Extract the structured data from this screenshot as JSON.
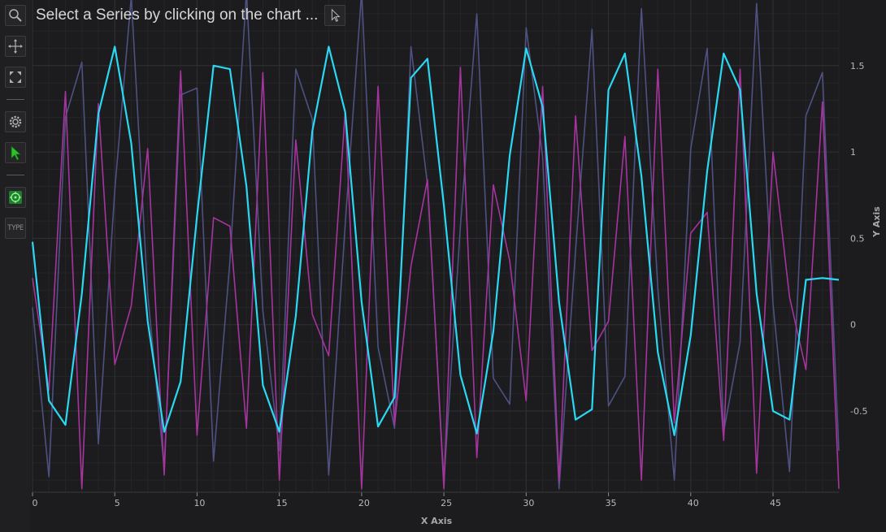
{
  "toolbar": {
    "items": [
      {
        "icon": "zoom-icon"
      },
      {
        "icon": "pan-icon"
      },
      {
        "icon": "zoom-extents-icon"
      },
      {
        "icon": "settings-icon"
      },
      {
        "icon": "series-select-cursor-icon"
      },
      {
        "icon": "crosshair-icon"
      },
      {
        "icon": "type-icon",
        "label": "TYPE"
      }
    ]
  },
  "title": {
    "text": "Select a Series by clicking on the chart ..."
  },
  "colors": {
    "background": "#1c1c1e",
    "series_purple": "#a6349e",
    "series_slate": "#4e5182",
    "series_cyan": "#2ad8f2",
    "grid_major": "#303034",
    "grid_minor": "#252528"
  },
  "chart_data": {
    "type": "line",
    "xlabel": "X Axis",
    "ylabel": "Y Axis",
    "xlim": [
      0,
      49
    ],
    "ylim": [
      -0.97,
      1.88
    ],
    "x_ticks": [
      0,
      5,
      10,
      15,
      20,
      25,
      30,
      35,
      40,
      45
    ],
    "y_ticks": [
      -0.5,
      0,
      0.5,
      1,
      1.5
    ],
    "grid": true,
    "y_axis_position": "right",
    "series": [
      {
        "color": "#4e5182",
        "width": 1.6,
        "values": [
          0.1,
          -0.88,
          1.2,
          1.52,
          -0.69,
          0.78,
          1.9,
          0.18,
          -0.83,
          1.33,
          1.37,
          -0.79,
          0.37,
          1.93,
          0.08,
          -0.73,
          1.48,
          1.19,
          -0.87,
          0.58,
          1.93,
          -0.13,
          -0.6,
          1.61,
          0.81,
          -0.91,
          0.57,
          1.8,
          -0.31,
          -0.46,
          1.72,
          0.97,
          -0.95,
          0.43,
          1.71,
          -0.47,
          -0.3,
          1.83,
          0.21,
          -0.9,
          1.02,
          1.6,
          -0.62,
          -0.1,
          1.86,
          0.12,
          -0.85,
          1.21,
          1.46,
          -0.73
        ]
      },
      {
        "color": "#a6349e",
        "width": 1.6,
        "values": [
          0.27,
          -0.38,
          1.35,
          -0.95,
          1.28,
          -0.23,
          0.11,
          1.02,
          -0.87,
          1.47,
          -0.64,
          0.62,
          0.57,
          -0.6,
          1.46,
          -0.9,
          1.07,
          0.06,
          -0.18,
          1.24,
          -0.95,
          1.38,
          -0.58,
          0.34,
          0.84,
          -0.95,
          1.49,
          -0.77,
          0.81,
          0.37,
          -0.44,
          1.38,
          -0.91,
          1.21,
          -0.15,
          0.02,
          1.09,
          -0.9,
          1.48,
          -0.57,
          0.53,
          0.65,
          -0.67,
          1.48,
          -0.86,
          1.0,
          0.16,
          -0.26,
          1.29,
          -0.95
        ]
      },
      {
        "color": "#2ad8f2",
        "width": 2.2,
        "values": [
          0.48,
          -0.44,
          -0.58,
          0.18,
          1.22,
          1.61,
          1.05,
          0.02,
          -0.62,
          -0.33,
          0.63,
          1.5,
          1.48,
          0.8,
          -0.35,
          -0.62,
          0.05,
          1.12,
          1.61,
          1.23,
          0.13,
          -0.59,
          -0.42,
          1.43,
          1.54,
          0.69,
          -0.29,
          -0.63,
          -0.04,
          0.98,
          1.6,
          1.26,
          0.13,
          -0.55,
          -0.49,
          1.36,
          1.57,
          0.86,
          -0.16,
          -0.64,
          -0.06,
          0.89,
          1.57,
          1.36,
          0.18,
          -0.5,
          -0.55,
          0.26,
          0.27,
          0.26
        ]
      }
    ]
  }
}
